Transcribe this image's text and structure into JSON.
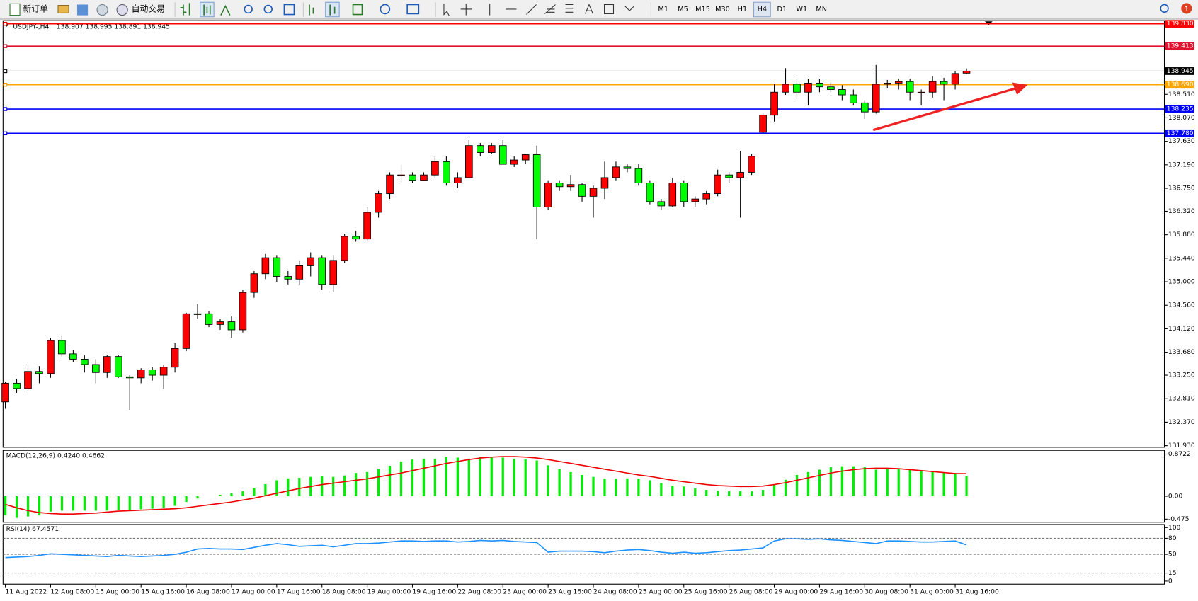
{
  "toolbar": {
    "new_order": "新订单",
    "auto_trading": "自动交易",
    "timeframes": [
      "M1",
      "M5",
      "M15",
      "M30",
      "H1",
      "H4",
      "D1",
      "W1",
      "MN"
    ],
    "active_timeframe": "H4",
    "notifications": 1
  },
  "chart_data": [
    {
      "type": "candlestick",
      "title": "USDJPY-,H4",
      "ohlc_label": "138.907 138.995 138.891 138.945",
      "up_color": "#ff0000",
      "down_color": "#00ff00",
      "categories": [
        "11 Aug 2022",
        null,
        null,
        null,
        "12 Aug 08:00",
        null,
        null,
        null,
        "15 Aug 00:00",
        null,
        null,
        null,
        "15 Aug 16:00",
        null,
        null,
        null,
        "16 Aug 08:00",
        null,
        null,
        null,
        "17 Aug 00:00",
        null,
        null,
        null,
        "17 Aug 16:00",
        null,
        null,
        null,
        "18 Aug 08:00",
        null,
        null,
        null,
        "19 Aug 00:00",
        null,
        null,
        null,
        "19 Aug 16:00",
        null,
        null,
        null,
        "22 Aug 08:00",
        null,
        null,
        null,
        "23 Aug 00:00",
        null,
        null,
        null,
        "23 Aug 16:00",
        null,
        null,
        null,
        "24 Aug 08:00",
        null,
        null,
        null,
        "25 Aug 00:00",
        null,
        null,
        null,
        "25 Aug 16:00",
        null,
        null,
        null,
        "26 Aug 08:00",
        null,
        null,
        null,
        "29 Aug 00:00",
        null,
        null,
        null,
        "29 Aug 16:00",
        null,
        null,
        null,
        "30 Aug 08:00",
        null,
        null,
        null,
        "31 Aug 00:00",
        null,
        null,
        null,
        "31 Aug 16:00",
        null
      ],
      "open": [
        132.75,
        133.1,
        133.0,
        133.32,
        133.28,
        133.9,
        133.65,
        133.55,
        133.45,
        133.3,
        133.6,
        133.22,
        133.2,
        133.35,
        133.25,
        133.4,
        133.75,
        134.4,
        134.4,
        134.2,
        134.25,
        134.1,
        134.8,
        135.15,
        135.45,
        135.1,
        135.05,
        135.3,
        135.45,
        134.95,
        135.4,
        135.85,
        135.8,
        136.3,
        136.65,
        137.0,
        137.0,
        136.9,
        137.0,
        137.25,
        136.85,
        136.95,
        137.55,
        137.42,
        137.55,
        137.2,
        137.28,
        137.38,
        136.4,
        136.85,
        136.78,
        136.82,
        136.6,
        136.75,
        136.95,
        137.15,
        137.12,
        136.85,
        136.5,
        136.42,
        136.85,
        136.5,
        136.55,
        136.65,
        137.0,
        136.95,
        137.05,
        137.8,
        138.12,
        138.55,
        138.7,
        138.55,
        138.72,
        138.65,
        138.6,
        138.5,
        138.35,
        138.18,
        138.7,
        138.72,
        138.75,
        138.55,
        138.55,
        138.75,
        138.7,
        138.907
      ],
      "high": [
        133.12,
        133.18,
        133.45,
        133.42,
        133.95,
        133.98,
        133.72,
        133.62,
        133.55,
        133.62,
        133.62,
        133.25,
        133.38,
        133.4,
        133.45,
        133.85,
        134.42,
        134.58,
        134.45,
        134.3,
        134.35,
        134.85,
        135.2,
        135.52,
        135.5,
        135.2,
        135.4,
        135.55,
        135.5,
        135.5,
        135.9,
        135.95,
        136.4,
        136.7,
        137.05,
        137.2,
        137.05,
        137.05,
        137.35,
        137.35,
        137.05,
        137.65,
        137.6,
        137.6,
        137.65,
        137.35,
        137.4,
        137.55,
        136.9,
        136.9,
        137.0,
        136.85,
        136.8,
        137.25,
        137.25,
        137.2,
        137.2,
        136.9,
        136.55,
        136.95,
        136.9,
        136.6,
        136.7,
        137.1,
        137.05,
        137.45,
        137.4,
        138.15,
        138.7,
        139.0,
        138.8,
        138.8,
        138.8,
        138.72,
        138.68,
        138.6,
        138.4,
        139.06,
        138.78,
        138.8,
        138.8,
        138.6,
        138.85,
        138.82,
        138.95,
        138.995
      ],
      "low": [
        132.62,
        132.92,
        132.95,
        133.1,
        133.2,
        133.58,
        133.5,
        133.3,
        133.1,
        133.2,
        133.2,
        132.6,
        133.1,
        133.15,
        133.0,
        133.3,
        133.7,
        134.3,
        134.15,
        134.1,
        133.95,
        134.05,
        134.7,
        135.05,
        135.0,
        134.95,
        134.95,
        135.1,
        134.85,
        134.8,
        135.35,
        135.75,
        135.75,
        136.2,
        136.55,
        136.85,
        136.85,
        136.9,
        136.95,
        136.8,
        136.75,
        136.95,
        137.35,
        137.4,
        137.2,
        137.15,
        137.2,
        135.8,
        136.35,
        136.7,
        136.7,
        136.5,
        136.2,
        136.55,
        136.9,
        137.05,
        136.8,
        136.45,
        136.35,
        136.4,
        136.4,
        136.4,
        136.45,
        136.6,
        136.85,
        136.2,
        137.0,
        137.78,
        138.0,
        138.5,
        138.4,
        138.3,
        138.55,
        138.55,
        138.4,
        138.3,
        138.05,
        138.15,
        138.62,
        138.6,
        138.4,
        138.3,
        138.45,
        138.4,
        138.6,
        138.891
      ],
      "close": [
        133.1,
        133.0,
        133.32,
        133.28,
        133.9,
        133.65,
        133.55,
        133.45,
        133.3,
        133.6,
        133.22,
        133.2,
        133.35,
        133.25,
        133.4,
        133.75,
        134.4,
        134.4,
        134.2,
        134.25,
        134.1,
        134.8,
        135.15,
        135.45,
        135.1,
        135.05,
        135.3,
        135.45,
        134.95,
        135.4,
        135.85,
        135.8,
        136.3,
        136.65,
        137.0,
        137.0,
        136.9,
        137.0,
        137.25,
        136.85,
        136.95,
        137.55,
        137.42,
        137.55,
        137.2,
        137.28,
        137.38,
        136.4,
        136.85,
        136.78,
        136.82,
        136.6,
        136.75,
        136.95,
        137.15,
        137.12,
        136.85,
        136.5,
        136.42,
        136.85,
        136.5,
        136.55,
        136.65,
        137.0,
        136.95,
        137.05,
        137.35,
        138.12,
        138.55,
        138.7,
        138.55,
        138.72,
        138.65,
        138.6,
        138.5,
        138.35,
        138.18,
        138.7,
        138.72,
        138.75,
        138.55,
        138.55,
        138.75,
        138.7,
        138.9,
        138.945
      ],
      "ylim": [
        131.9,
        139.89
      ],
      "yticks": [
        {
          "value": 131.93,
          "label": "131.930"
        },
        {
          "value": 132.37,
          "label": "132.370"
        },
        {
          "value": 132.81,
          "label": "132.810"
        },
        {
          "value": 133.25,
          "label": "133.250"
        },
        {
          "value": 133.68,
          "label": "133.680"
        },
        {
          "value": 134.12,
          "label": "134.120"
        },
        {
          "value": 134.56,
          "label": "134.560"
        },
        {
          "value": 135,
          "label": "135.000"
        },
        {
          "value": 135.44,
          "label": "135.440"
        },
        {
          "value": 135.88,
          "label": "135.880"
        },
        {
          "value": 136.32,
          "label": "136.320"
        },
        {
          "value": 136.75,
          "label": "136.750"
        },
        {
          "value": 137.19,
          "label": "137.190"
        },
        {
          "value": 137.63,
          "label": "137.630"
        },
        {
          "value": 138.07,
          "label": "138.070"
        },
        {
          "value": 138.51,
          "label": "138.510"
        }
      ],
      "levels": [
        {
          "value": 139.83,
          "label": "139.830",
          "color": "#ff0000"
        },
        {
          "value": 139.413,
          "label": "139.413",
          "color": "#e0102f"
        },
        {
          "value": 138.945,
          "label": "138.945",
          "color": "#000000"
        },
        {
          "value": 138.69,
          "label": "138.690",
          "color": "#ffa500"
        },
        {
          "value": 138.235,
          "label": "138.235",
          "color": "#0000ff"
        },
        {
          "value": 137.78,
          "label": "137.780",
          "color": "#0000ff"
        }
      ]
    },
    {
      "type": "macd",
      "title": "MACD(12,26,9) 0.4240 0.4662",
      "histogram": {
        "color": "#00ee00",
        "values": [
          -0.4,
          -0.45,
          -0.42,
          -0.4,
          -0.32,
          -0.3,
          -0.3,
          -0.3,
          -0.3,
          -0.3,
          -0.28,
          -0.28,
          -0.27,
          -0.26,
          -0.24,
          -0.2,
          -0.12,
          -0.05,
          0.0,
          0.03,
          0.07,
          0.1,
          0.17,
          0.25,
          0.33,
          0.37,
          0.38,
          0.4,
          0.42,
          0.4,
          0.43,
          0.48,
          0.5,
          0.56,
          0.63,
          0.72,
          0.76,
          0.78,
          0.78,
          0.82,
          0.8,
          0.78,
          0.82,
          0.82,
          0.8,
          0.78,
          0.76,
          0.74,
          0.64,
          0.56,
          0.5,
          0.44,
          0.4,
          0.36,
          0.36,
          0.37,
          0.36,
          0.33,
          0.27,
          0.22,
          0.2,
          0.16,
          0.13,
          0.11,
          0.1,
          0.1,
          0.1,
          0.13,
          0.24,
          0.34,
          0.44,
          0.5,
          0.55,
          0.6,
          0.62,
          0.62,
          0.6,
          0.55,
          0.56,
          0.56,
          0.55,
          0.53,
          0.5,
          0.49,
          0.48,
          0.424
        ]
      },
      "signal": {
        "color": "#ee0000",
        "values": [
          -0.17,
          -0.24,
          -0.3,
          -0.34,
          -0.36,
          -0.37,
          -0.37,
          -0.36,
          -0.35,
          -0.33,
          -0.31,
          -0.3,
          -0.29,
          -0.28,
          -0.27,
          -0.26,
          -0.24,
          -0.21,
          -0.18,
          -0.15,
          -0.12,
          -0.08,
          -0.04,
          0.01,
          0.06,
          0.11,
          0.16,
          0.2,
          0.24,
          0.27,
          0.3,
          0.33,
          0.36,
          0.4,
          0.44,
          0.48,
          0.53,
          0.58,
          0.63,
          0.68,
          0.72,
          0.76,
          0.79,
          0.81,
          0.82,
          0.82,
          0.81,
          0.79,
          0.76,
          0.72,
          0.68,
          0.64,
          0.6,
          0.56,
          0.52,
          0.48,
          0.44,
          0.41,
          0.37,
          0.33,
          0.3,
          0.27,
          0.24,
          0.22,
          0.21,
          0.2,
          0.2,
          0.21,
          0.24,
          0.28,
          0.33,
          0.38,
          0.43,
          0.48,
          0.52,
          0.55,
          0.57,
          0.58,
          0.58,
          0.57,
          0.55,
          0.53,
          0.51,
          0.49,
          0.47,
          0.4662
        ]
      },
      "ylim": [
        -0.54,
        0.95
      ],
      "yticks": [
        0.8722,
        {
          "value": 0,
          "label": "0.00"
        },
        -0.475
      ]
    },
    {
      "type": "rsi",
      "title": "RSI(14) 67.4571",
      "color": "#1e90ff",
      "values": [
        44,
        45,
        46,
        48,
        51,
        50,
        49,
        48,
        47,
        46,
        48,
        47,
        46,
        47,
        48,
        50,
        54,
        60,
        61,
        60,
        60,
        59,
        63,
        67,
        70,
        68,
        65,
        66,
        67,
        64,
        67,
        70,
        70,
        71,
        73,
        75,
        75,
        74,
        75,
        75,
        73,
        74,
        76,
        75,
        76,
        74,
        73,
        72,
        54,
        56,
        56,
        56,
        55,
        53,
        56,
        58,
        59,
        57,
        54,
        52,
        54,
        52,
        53,
        55,
        57,
        58,
        60,
        62,
        75,
        79,
        79,
        78,
        79,
        77,
        76,
        74,
        72,
        70,
        75,
        75,
        74,
        73,
        73,
        74,
        75,
        67.4571
      ],
      "ylim": [
        0,
        100
      ],
      "yticks": [
        100,
        80,
        50,
        15,
        0
      ],
      "levels": [
        80,
        50,
        15
      ]
    }
  ]
}
